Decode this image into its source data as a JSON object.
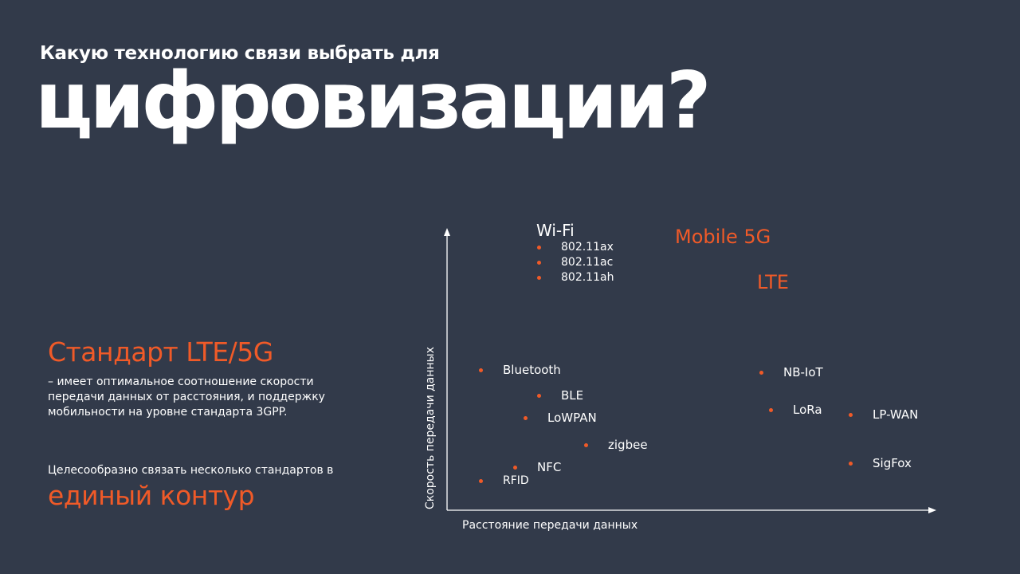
{
  "title": {
    "line1": "Какую технологию связи выбрать для",
    "line2": "цифровизации?"
  },
  "left_panel": {
    "heading": "Стандарт LTE/5G",
    "description": "– имеет оптимальное соотношение скорости\nпередачи данных от расстояния, и поддержку\nмобильности на уровне стандарта 3GPP.",
    "advice": "Целесообразно связать несколько стандартов в",
    "highlight": "единый контур"
  },
  "diagram": {
    "y_axis_label": "Скорость передачи данных",
    "x_axis_label": "Расстояние передачи данных",
    "wifi": {
      "title": "Wi-Fi",
      "items": [
        "802.11ax",
        "802.11ac",
        "802.11ah"
      ]
    },
    "mobile_5g": "Mobile 5G",
    "lte": "LTE",
    "technologies": {
      "bluetooth": "Bluetooth",
      "ble": "BLE",
      "lowpan": "LoWPAN",
      "zigbee": "zigbee",
      "nfc": "NFC",
      "rfid": "RFID",
      "nbiot": "NB-IoT",
      "lora": "LoRa",
      "lpwan": "LP-WAN",
      "sigfox": "SigFox"
    }
  },
  "colors": {
    "background": "#323a4a",
    "accent": "#f05a28",
    "text": "#ffffff"
  }
}
